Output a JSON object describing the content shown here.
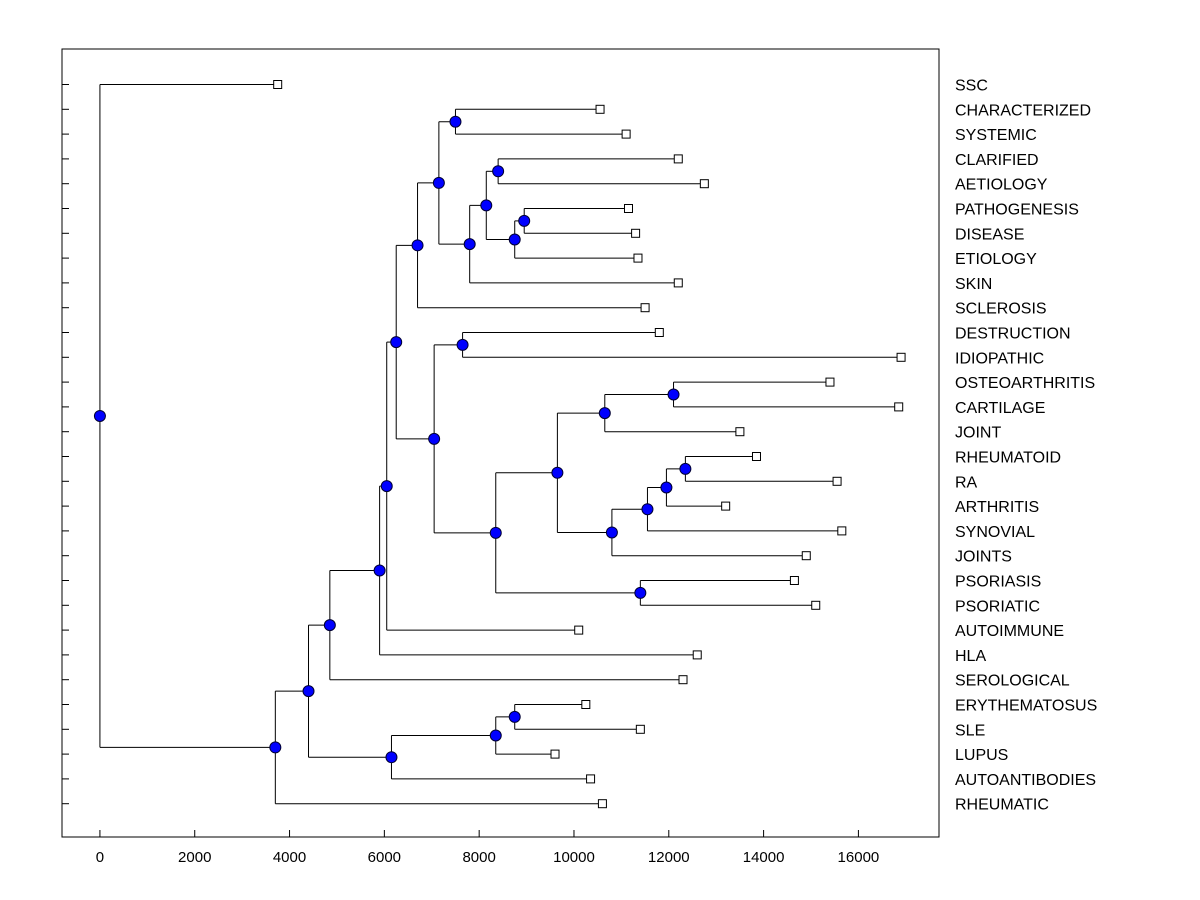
{
  "chart_data": {
    "type": "dendrogram",
    "orientation": "horizontal",
    "title": "",
    "xlabel": "",
    "ylabel": "",
    "xlim": [
      -800,
      17700
    ],
    "xticks": [
      0,
      2000,
      4000,
      6000,
      8000,
      10000,
      12000,
      14000,
      16000
    ],
    "xtick_labels": [
      "0",
      "2000",
      "4000",
      "6000",
      "8000",
      "10000",
      "12000",
      "14000",
      "16000"
    ],
    "grid": false,
    "leaves": [
      {
        "label": "SSC",
        "x": 3750
      },
      {
        "label": "CHARACTERIZED",
        "x": 10550
      },
      {
        "label": "SYSTEMIC",
        "x": 11100
      },
      {
        "label": "CLARIFIED",
        "x": 12200
      },
      {
        "label": "AETIOLOGY",
        "x": 12750
      },
      {
        "label": "PATHOGENESIS",
        "x": 11150
      },
      {
        "label": "DISEASE",
        "x": 11300
      },
      {
        "label": "ETIOLOGY",
        "x": 11350
      },
      {
        "label": "SKIN",
        "x": 12200
      },
      {
        "label": "SCLEROSIS",
        "x": 11500
      },
      {
        "label": "DESTRUCTION",
        "x": 11800
      },
      {
        "label": "IDIOPATHIC",
        "x": 16900
      },
      {
        "label": "OSTEOARTHRITIS",
        "x": 15400
      },
      {
        "label": "CARTILAGE",
        "x": 16850
      },
      {
        "label": "JOINT",
        "x": 13500
      },
      {
        "label": "RHEUMATOID",
        "x": 13850
      },
      {
        "label": "RA",
        "x": 15550
      },
      {
        "label": "ARTHRITIS",
        "x": 13200
      },
      {
        "label": "SYNOVIAL",
        "x": 15650
      },
      {
        "label": "JOINTS",
        "x": 14900
      },
      {
        "label": "PSORIASIS",
        "x": 14650
      },
      {
        "label": "PSORIATIC",
        "x": 15100
      },
      {
        "label": "AUTOIMMUNE",
        "x": 10100
      },
      {
        "label": "HLA",
        "x": 12600
      },
      {
        "label": "SEROLOGICAL",
        "x": 12300
      },
      {
        "label": "ERYTHEMATOSUS",
        "x": 10250
      },
      {
        "label": "SLE",
        "x": 11400
      },
      {
        "label": "LUPUS",
        "x": 9600
      },
      {
        "label": "AUTOANTIBODIES",
        "x": 10350
      },
      {
        "label": "RHEUMATIC",
        "x": 10600
      }
    ],
    "nodes": [
      {
        "id": "n1",
        "x": 8950,
        "children": [
          "PATHOGENESIS",
          "DISEASE"
        ]
      },
      {
        "id": "n2",
        "x": 8750,
        "children": [
          "n1",
          "ETIOLOGY"
        ]
      },
      {
        "id": "n3",
        "x": 8400,
        "children": [
          "CLARIFIED",
          "AETIOLOGY"
        ]
      },
      {
        "id": "n4",
        "x": 8150,
        "children": [
          "n3",
          "n2"
        ]
      },
      {
        "id": "n5",
        "x": 7800,
        "children": [
          "n4",
          "SKIN"
        ]
      },
      {
        "id": "n6",
        "x": 7500,
        "children": [
          "CHARACTERIZED",
          "SYSTEMIC"
        ]
      },
      {
        "id": "n7",
        "x": 7150,
        "children": [
          "n6",
          "n5"
        ]
      },
      {
        "id": "n8",
        "x": 6700,
        "children": [
          "n7",
          "SCLEROSIS"
        ]
      },
      {
        "id": "n9",
        "x": 7650,
        "children": [
          "DESTRUCTION",
          "IDIOPATHIC"
        ]
      },
      {
        "id": "n10",
        "x": 12100,
        "children": [
          "OSTEOARTHRITIS",
          "CARTILAGE"
        ]
      },
      {
        "id": "n11",
        "x": 10650,
        "children": [
          "n10",
          "JOINT"
        ]
      },
      {
        "id": "n12",
        "x": 12350,
        "children": [
          "RHEUMATOID",
          "RA"
        ]
      },
      {
        "id": "n13",
        "x": 11950,
        "children": [
          "n12",
          "ARTHRITIS"
        ]
      },
      {
        "id": "n14",
        "x": 11550,
        "children": [
          "n13",
          "SYNOVIAL"
        ]
      },
      {
        "id": "n15",
        "x": 10800,
        "children": [
          "n14",
          "JOINTS"
        ]
      },
      {
        "id": "n16",
        "x": 9650,
        "children": [
          "n11",
          "n15"
        ]
      },
      {
        "id": "n17",
        "x": 11400,
        "children": [
          "PSORIASIS",
          "PSORIATIC"
        ]
      },
      {
        "id": "n18",
        "x": 8350,
        "children": [
          "n16",
          "n17"
        ]
      },
      {
        "id": "n19",
        "x": 7050,
        "children": [
          "n9",
          "n18"
        ]
      },
      {
        "id": "n20",
        "x": 6250,
        "children": [
          "n8",
          "n19"
        ]
      },
      {
        "id": "n21",
        "x": 6050,
        "children": [
          "n20",
          "AUTOIMMUNE"
        ]
      },
      {
        "id": "n22",
        "x": 5900,
        "children": [
          "n21",
          "HLA"
        ]
      },
      {
        "id": "n23",
        "x": 4850,
        "children": [
          "n22",
          "SEROLOGICAL"
        ]
      },
      {
        "id": "n24",
        "x": 8750,
        "children": [
          "ERYTHEMATOSUS",
          "SLE"
        ]
      },
      {
        "id": "n25",
        "x": 8350,
        "children": [
          "n24",
          "LUPUS"
        ]
      },
      {
        "id": "n26",
        "x": 6150,
        "children": [
          "n25",
          "AUTOANTIBODIES"
        ]
      },
      {
        "id": "n27",
        "x": 4400,
        "children": [
          "n23",
          "n26"
        ]
      },
      {
        "id": "n28",
        "x": 3700,
        "children": [
          "n27",
          "RHEUMATIC"
        ]
      },
      {
        "id": "n29",
        "x": 0,
        "children": [
          "SSC",
          "n28"
        ]
      }
    ],
    "colors": {
      "node_fill": "#0000ff",
      "node_stroke": "#000033",
      "leaf_fill": "#ffffff",
      "line": "#000000",
      "axis": "#000000"
    }
  }
}
